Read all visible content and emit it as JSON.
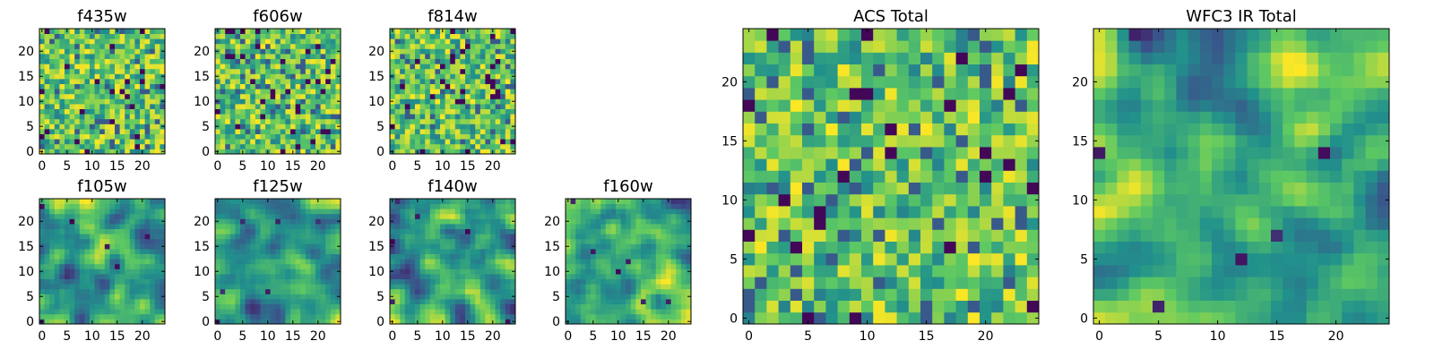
{
  "figure": {
    "colormap": [
      "#440154",
      "#3b528b",
      "#21918c",
      "#5ec962",
      "#fde725"
    ]
  },
  "chart_data": [
    {
      "type": "heatmap",
      "title": "f435w",
      "xticks": [
        "0",
        "5",
        "10",
        "15",
        "20"
      ],
      "yticks": [
        "0",
        "5",
        "10",
        "15",
        "20"
      ],
      "xlim": [
        0,
        24
      ],
      "ylim": [
        0,
        24
      ],
      "grid": false,
      "texture": "noisy"
    },
    {
      "type": "heatmap",
      "title": "f606w",
      "xticks": [
        "0",
        "5",
        "10",
        "15",
        "20"
      ],
      "yticks": [
        "0",
        "5",
        "10",
        "15",
        "20"
      ],
      "xlim": [
        0,
        24
      ],
      "ylim": [
        0,
        24
      ],
      "grid": false,
      "texture": "noisy"
    },
    {
      "type": "heatmap",
      "title": "f814w",
      "xticks": [
        "0",
        "5",
        "10",
        "15",
        "20"
      ],
      "yticks": [
        "0",
        "5",
        "10",
        "15",
        "20"
      ],
      "xlim": [
        0,
        24
      ],
      "ylim": [
        0,
        24
      ],
      "grid": false,
      "texture": "noisy"
    },
    {
      "type": "heatmap",
      "title": "f105w",
      "xticks": [
        "0",
        "5",
        "10",
        "15",
        "20"
      ],
      "yticks": [
        "0",
        "5",
        "10",
        "15",
        "20"
      ],
      "xlim": [
        0,
        24
      ],
      "ylim": [
        0,
        24
      ],
      "grid": false,
      "texture": "smooth"
    },
    {
      "type": "heatmap",
      "title": "f125w",
      "xticks": [
        "0",
        "5",
        "10",
        "15",
        "20"
      ],
      "yticks": [
        "0",
        "5",
        "10",
        "15",
        "20"
      ],
      "xlim": [
        0,
        24
      ],
      "ylim": [
        0,
        24
      ],
      "grid": false,
      "texture": "smooth"
    },
    {
      "type": "heatmap",
      "title": "f140w",
      "xticks": [
        "0",
        "5",
        "10",
        "15",
        "20"
      ],
      "yticks": [
        "0",
        "5",
        "10",
        "15",
        "20"
      ],
      "xlim": [
        0,
        24
      ],
      "ylim": [
        0,
        24
      ],
      "grid": false,
      "texture": "smooth"
    },
    {
      "type": "heatmap",
      "title": "f160w",
      "xticks": [
        "0",
        "5",
        "10",
        "15",
        "20"
      ],
      "yticks": [
        "0",
        "5",
        "10",
        "15",
        "20"
      ],
      "xlim": [
        0,
        24
      ],
      "ylim": [
        0,
        24
      ],
      "grid": false,
      "texture": "smooth"
    },
    {
      "type": "heatmap",
      "title": "ACS Total",
      "xticks": [
        "0",
        "5",
        "10",
        "15",
        "20"
      ],
      "yticks": [
        "0",
        "5",
        "10",
        "15",
        "20"
      ],
      "xlim": [
        0,
        24
      ],
      "ylim": [
        0,
        24
      ],
      "grid": false,
      "texture": "noisy"
    },
    {
      "type": "heatmap",
      "title": "WFC3 IR Total",
      "xticks": [
        "0",
        "5",
        "10",
        "15",
        "20"
      ],
      "yticks": [
        "0",
        "5",
        "10",
        "15",
        "20"
      ],
      "xlim": [
        0,
        24
      ],
      "ylim": [
        0,
        24
      ],
      "grid": false,
      "texture": "smooth"
    }
  ]
}
